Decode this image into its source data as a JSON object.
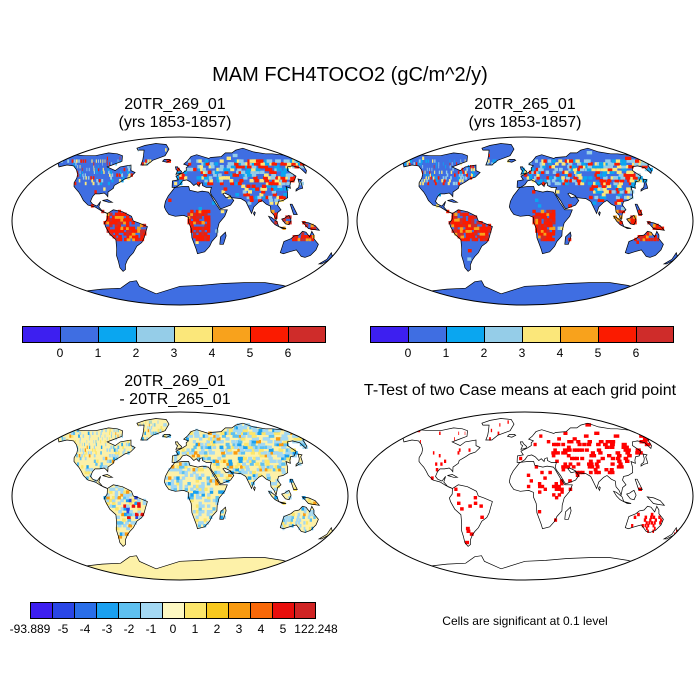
{
  "figure_title": "MAM FCH4TOCO2 (gC/m^2/y)",
  "panels": [
    {
      "title_line1": "20TR_269_01",
      "title_line2": "(yrs 1853-1857)",
      "map": "case-mean"
    },
    {
      "title_line1": "20TR_265_01",
      "title_line2": "(yrs 1853-1857)",
      "map": "case-mean"
    },
    {
      "title_line1": "20TR_269_01",
      "title_line2": "- 20TR_265_01",
      "map": "difference"
    },
    {
      "title_line1": "T-Test of two Case means at each grid point",
      "map": "significance"
    }
  ],
  "significance_note": "Cells are significant at 0.1 level",
  "colorbars": {
    "mean": {
      "colors": [
        "#3d1ff0",
        "#3f6ee2",
        "#0aa6f0",
        "#95cde8",
        "#fbe77a",
        "#f8a21c",
        "#fb1b00",
        "#cf2c2a"
      ],
      "labels": [
        "0",
        "1",
        "2",
        "3",
        "4",
        "5",
        "6"
      ]
    },
    "difference": {
      "colors": [
        "#3d1ff0",
        "#2a46e6",
        "#2a6ee8",
        "#1aa0f0",
        "#5ec0f0",
        "#a3d8f3",
        "#fdf8c2",
        "#fce66b",
        "#f8c81e",
        "#f89a10",
        "#f86808",
        "#e80e0c",
        "#d02424"
      ],
      "labels": [
        "-93.889",
        "-5",
        "-4",
        "-3",
        "-2",
        "-1",
        "0",
        "1",
        "2",
        "3",
        "4",
        "5",
        "122.248"
      ]
    }
  },
  "map_colors": {
    "ocean": "#ffffff",
    "mean_land": "#3f6ee2",
    "diff_land": "#fdf1a8",
    "sig_land": "#ffffff",
    "significant": "#ff0000",
    "coast": "#000000"
  }
}
